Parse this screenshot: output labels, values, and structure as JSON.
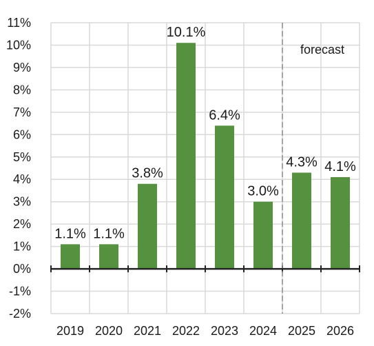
{
  "chart_data": {
    "type": "bar",
    "title": "",
    "xlabel": "",
    "ylabel": "",
    "categories": [
      "2019",
      "2020",
      "2021",
      "2022",
      "2023",
      "2024",
      "2025",
      "2026"
    ],
    "values": [
      1.1,
      1.1,
      3.8,
      10.1,
      6.4,
      3.0,
      4.3,
      4.1
    ],
    "data_labels": [
      "1.1%",
      "1.1%",
      "3.8%",
      "10.1%",
      "6.4%",
      "3.0%",
      "4.3%",
      "4.1%"
    ],
    "ylim": [
      -2,
      11
    ],
    "yticks": [
      -2,
      -1,
      0,
      1,
      2,
      3,
      4,
      5,
      6,
      7,
      8,
      9,
      10,
      11
    ],
    "ytick_labels": [
      "-2%",
      "-1%",
      "0%",
      "1%",
      "2%",
      "3%",
      "4%",
      "5%",
      "6%",
      "7%",
      "8%",
      "9%",
      "10%",
      "11%"
    ],
    "grid": true,
    "bar_color": "#56913f",
    "forecast_divider_after": "2024",
    "forecast_label": "forecast"
  }
}
